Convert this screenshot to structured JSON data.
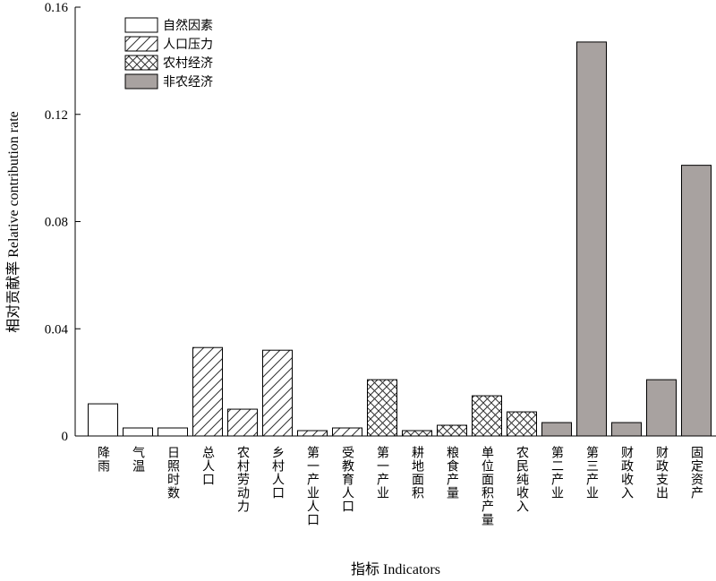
{
  "chart_data": {
    "type": "bar",
    "xlabel": "指标 Indicators",
    "ylabel": "相对贡献率 Relative contribution rate",
    "ylim": [
      0,
      0.16
    ],
    "yticks": [
      "0",
      "0.04",
      "0.08",
      "0.12",
      "0.16"
    ],
    "ytick_values": [
      0,
      0.04,
      0.08,
      0.12,
      0.16
    ],
    "legend_position": "top-left",
    "groups": [
      {
        "name": "自然因素",
        "pattern": "none",
        "fill": "#ffffff"
      },
      {
        "name": "人口压力",
        "pattern": "diagonal-hatch",
        "fill": "#ffffff"
      },
      {
        "name": "农村经济",
        "pattern": "cross-hatch",
        "fill": "#ffffff"
      },
      {
        "name": "非农经济",
        "pattern": "solid",
        "fill": "#a8a2a0"
      }
    ],
    "categories": [
      "降雨",
      "气温",
      "日照时数",
      "总人口",
      "农村劳动力",
      "乡村人口",
      "第一产业人口",
      "受教育人口",
      "第一产业",
      "耕地面积",
      "粮食产量",
      "单位面积产量",
      "农民纯收入",
      "第二产业",
      "第三产业",
      "财政收入",
      "财政支出",
      "固定资产"
    ],
    "category_group": [
      0,
      0,
      0,
      1,
      1,
      1,
      1,
      1,
      2,
      2,
      2,
      2,
      2,
      3,
      3,
      3,
      3,
      3
    ],
    "values": [
      0.012,
      0.003,
      0.003,
      0.033,
      0.01,
      0.032,
      0.002,
      0.003,
      0.021,
      0.002,
      0.004,
      0.015,
      0.009,
      0.005,
      0.147,
      0.005,
      0.021,
      0.101
    ]
  }
}
